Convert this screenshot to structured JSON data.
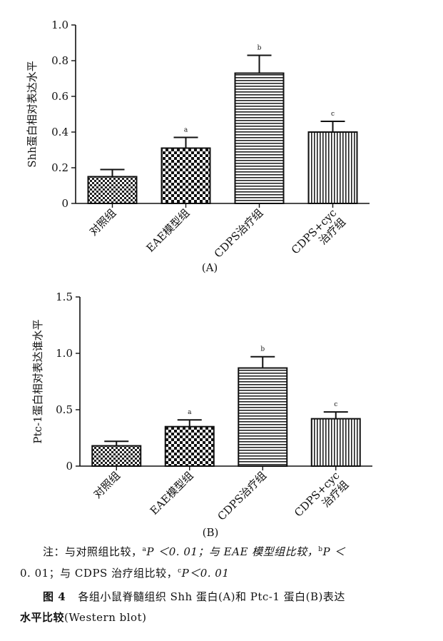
{
  "chart_data": [
    {
      "panel": "A",
      "type": "bar",
      "ylabel": "Shh蛋白相对表达水平",
      "ylim": [
        0,
        1.0
      ],
      "yticks": [
        "0",
        "0.2",
        "0.4",
        "0.6",
        "0.8",
        "1.0"
      ],
      "ytick_values": [
        0,
        0.2,
        0.4,
        0.6,
        0.8,
        1.0
      ],
      "categories": [
        "对照组",
        "EAE模型组",
        "CDPS治疗组",
        "CDPS+cyc 治疗组"
      ],
      "category_lines": [
        [
          "对照组"
        ],
        [
          "EAE模型组"
        ],
        [
          "CDPS治疗组"
        ],
        [
          "CDPS+cyc",
          "治疗组"
        ]
      ],
      "values": [
        0.15,
        0.31,
        0.73,
        0.4
      ],
      "errors": [
        0.04,
        0.06,
        0.1,
        0.06
      ],
      "annotations": [
        "",
        "a",
        "b",
        "c"
      ],
      "patterns": [
        "checker",
        "checker-large",
        "horizontal",
        "vertical"
      ],
      "panel_label": "(A)"
    },
    {
      "panel": "B",
      "type": "bar",
      "ylabel": "Ptc-1蛋白相对表达谁水平",
      "ylim": [
        0,
        1.5
      ],
      "yticks": [
        "0",
        "0.5",
        "1.0",
        "1.5"
      ],
      "ytick_values": [
        0,
        0.5,
        1.0,
        1.5
      ],
      "categories": [
        "对照组",
        "EAE模型组",
        "CDPS治疗组",
        "CDPS+cyc 治疗组"
      ],
      "category_lines": [
        [
          "对照组"
        ],
        [
          "EAE模型组"
        ],
        [
          "CDPS治疗组"
        ],
        [
          "CDPS+cyc",
          "治疗组"
        ]
      ],
      "values": [
        0.18,
        0.35,
        0.87,
        0.42
      ],
      "errors": [
        0.04,
        0.06,
        0.1,
        0.06
      ],
      "annotations": [
        "",
        "a",
        "b",
        "c"
      ],
      "patterns": [
        "checker",
        "checker-large",
        "horizontal",
        "vertical"
      ],
      "panel_label": "(B)"
    }
  ],
  "caption": {
    "note_prefix": "注：与对照组比较，",
    "note_a": "a",
    "note_p1": "P ＜0. 01；与 EAE 模型组比较，",
    "note_b": "b",
    "note_p2": "P ＜",
    "note_line2_start": "0. 01；与 CDPS 治疗组比较，",
    "note_c": "c",
    "note_p3": "P＜0. 01",
    "fig_number": "图 4",
    "fig_title_1": "各组小鼠脊髓组织 Shh 蛋白(A)和 Ptc-1 蛋白(B)表达",
    "fig_title_2": "水平比较",
    "fig_title_2b": "(Western blot)"
  }
}
